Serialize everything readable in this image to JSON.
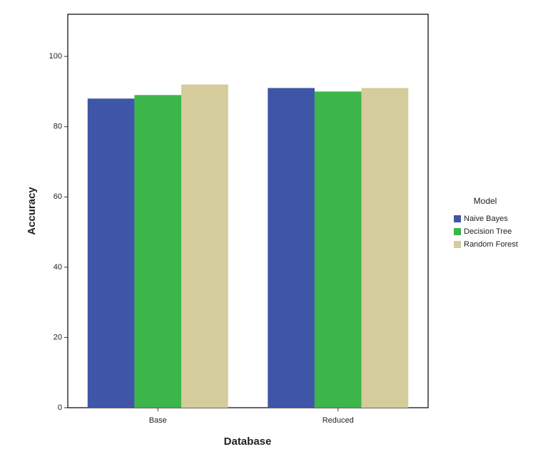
{
  "chart_data": {
    "type": "bar",
    "x_label": "Database",
    "y_label": "Accuracy",
    "categories": [
      "Base",
      "Reduced"
    ],
    "series": [
      {
        "name": "Naive Bayes",
        "color": "#3f55a8",
        "values": [
          88,
          91
        ]
      },
      {
        "name": "Decision Tree",
        "color": "#3cb54a",
        "values": [
          89,
          90
        ]
      },
      {
        "name": "Random Forest",
        "color": "#d4cc9a",
        "values": [
          92,
          91
        ]
      }
    ],
    "legend_title": "Model",
    "legend_position": "right",
    "ylim": [
      0,
      112
    ],
    "yticks": [
      0,
      20,
      40,
      60,
      80,
      100
    ],
    "grid": false
  }
}
